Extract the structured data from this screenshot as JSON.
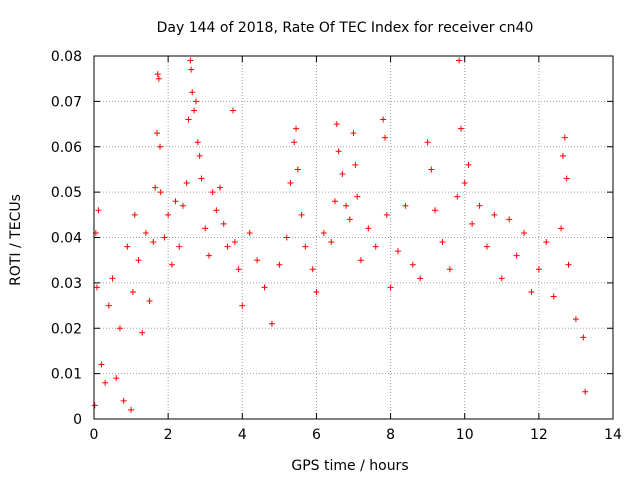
{
  "colors": {
    "series": "#ff0000",
    "grid": "#a0a0a0",
    "axis": "#000000"
  },
  "chart_data": {
    "type": "scatter",
    "title": "Day 144 of 2018, Rate Of TEC Index for receiver cn40",
    "xlabel": "GPS time / hours",
    "ylabel": "ROTI / TECUs",
    "xlim": [
      0,
      14
    ],
    "ylim": [
      0,
      0.08
    ],
    "xticks": [
      0,
      2,
      4,
      6,
      8,
      10,
      12,
      14
    ],
    "yticks": [
      0,
      0.01,
      0.02,
      0.03,
      0.04,
      0.05,
      0.06,
      0.07,
      0.08
    ],
    "xtick_labels": [
      "0",
      "2",
      "4",
      "6",
      "8",
      "10",
      "12",
      "14"
    ],
    "ytick_labels": [
      "0",
      "0.01",
      "0.02",
      "0.03",
      "0.04",
      "0.05",
      "0.06",
      "0.07",
      "0.08"
    ],
    "grid": true,
    "marker": "+",
    "series": [
      {
        "name": "ROTI",
        "points": [
          [
            0.02,
            0.003
          ],
          [
            0.05,
            0.041
          ],
          [
            0.08,
            0.029
          ],
          [
            0.12,
            0.046
          ],
          [
            0.2,
            0.012
          ],
          [
            0.3,
            0.008
          ],
          [
            0.4,
            0.025
          ],
          [
            0.5,
            0.031
          ],
          [
            0.6,
            0.009
          ],
          [
            0.7,
            0.02
          ],
          [
            0.8,
            0.004
          ],
          [
            0.9,
            0.038
          ],
          [
            1.0,
            0.002
          ],
          [
            1.05,
            0.028
          ],
          [
            1.1,
            0.045
          ],
          [
            1.2,
            0.035
          ],
          [
            1.3,
            0.019
          ],
          [
            1.4,
            0.041
          ],
          [
            1.5,
            0.026
          ],
          [
            1.6,
            0.039
          ],
          [
            1.65,
            0.051
          ],
          [
            1.7,
            0.063
          ],
          [
            1.72,
            0.076
          ],
          [
            1.75,
            0.075
          ],
          [
            1.78,
            0.06
          ],
          [
            1.8,
            0.05
          ],
          [
            1.9,
            0.04
          ],
          [
            2.0,
            0.045
          ],
          [
            2.1,
            0.034
          ],
          [
            2.2,
            0.048
          ],
          [
            2.3,
            0.038
          ],
          [
            2.4,
            0.047
          ],
          [
            2.5,
            0.052
          ],
          [
            2.55,
            0.066
          ],
          [
            2.6,
            0.079
          ],
          [
            2.62,
            0.077
          ],
          [
            2.65,
            0.072
          ],
          [
            2.7,
            0.068
          ],
          [
            2.75,
            0.07
          ],
          [
            2.8,
            0.061
          ],
          [
            2.85,
            0.058
          ],
          [
            2.9,
            0.053
          ],
          [
            3.0,
            0.042
          ],
          [
            3.1,
            0.036
          ],
          [
            3.2,
            0.05
          ],
          [
            3.3,
            0.046
          ],
          [
            3.4,
            0.051
          ],
          [
            3.5,
            0.043
          ],
          [
            3.6,
            0.038
          ],
          [
            3.75,
            0.068
          ],
          [
            3.8,
            0.039
          ],
          [
            3.9,
            0.033
          ],
          [
            4.0,
            0.025
          ],
          [
            4.2,
            0.041
          ],
          [
            4.4,
            0.035
          ],
          [
            4.6,
            0.029
          ],
          [
            4.8,
            0.021
          ],
          [
            5.0,
            0.034
          ],
          [
            5.2,
            0.04
          ],
          [
            5.3,
            0.052
          ],
          [
            5.4,
            0.061
          ],
          [
            5.45,
            0.064
          ],
          [
            5.5,
            0.055
          ],
          [
            5.6,
            0.045
          ],
          [
            5.7,
            0.038
          ],
          [
            5.9,
            0.033
          ],
          [
            6.0,
            0.028
          ],
          [
            6.2,
            0.041
          ],
          [
            6.4,
            0.039
          ],
          [
            6.5,
            0.048
          ],
          [
            6.55,
            0.065
          ],
          [
            6.6,
            0.059
          ],
          [
            6.7,
            0.054
          ],
          [
            6.8,
            0.047
          ],
          [
            6.9,
            0.044
          ],
          [
            7.0,
            0.063
          ],
          [
            7.05,
            0.056
          ],
          [
            7.1,
            0.049
          ],
          [
            7.2,
            0.035
          ],
          [
            7.4,
            0.042
          ],
          [
            7.6,
            0.038
          ],
          [
            7.8,
            0.066
          ],
          [
            7.85,
            0.062
          ],
          [
            7.9,
            0.045
          ],
          [
            8.0,
            0.029
          ],
          [
            8.2,
            0.037
          ],
          [
            8.4,
            0.047
          ],
          [
            8.6,
            0.034
          ],
          [
            8.8,
            0.031
          ],
          [
            9.0,
            0.061
          ],
          [
            9.1,
            0.055
          ],
          [
            9.2,
            0.046
          ],
          [
            9.4,
            0.039
          ],
          [
            9.6,
            0.033
          ],
          [
            9.8,
            0.049
          ],
          [
            9.85,
            0.079
          ],
          [
            9.9,
            0.064
          ],
          [
            10.0,
            0.052
          ],
          [
            10.1,
            0.056
          ],
          [
            10.2,
            0.043
          ],
          [
            10.4,
            0.047
          ],
          [
            10.6,
            0.038
          ],
          [
            10.8,
            0.045
          ],
          [
            11.0,
            0.031
          ],
          [
            11.2,
            0.044
          ],
          [
            11.4,
            0.036
          ],
          [
            11.6,
            0.041
          ],
          [
            11.8,
            0.028
          ],
          [
            12.0,
            0.033
          ],
          [
            12.2,
            0.039
          ],
          [
            12.4,
            0.027
          ],
          [
            12.6,
            0.042
          ],
          [
            12.65,
            0.058
          ],
          [
            12.7,
            0.062
          ],
          [
            12.75,
            0.053
          ],
          [
            12.8,
            0.034
          ],
          [
            13.0,
            0.022
          ],
          [
            13.2,
            0.018
          ],
          [
            13.25,
            0.006
          ]
        ]
      }
    ]
  }
}
